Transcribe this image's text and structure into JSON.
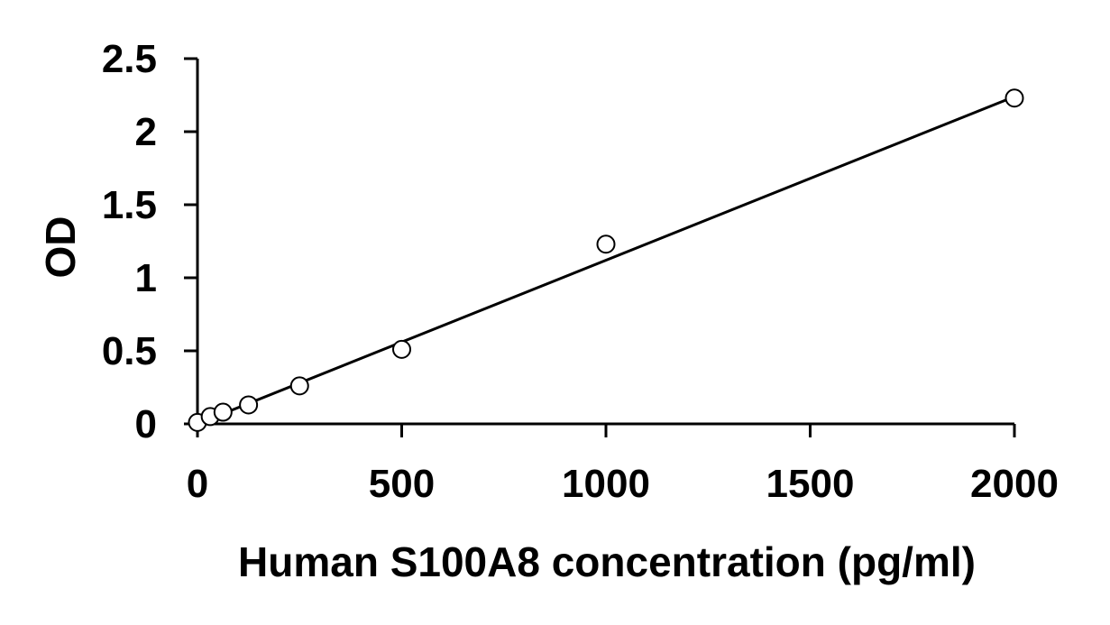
{
  "chart_data": {
    "type": "scatter",
    "title": "",
    "xlabel": "Human S100A8 concentration (pg/ml)",
    "ylabel": "OD",
    "xlim": [
      0,
      2000
    ],
    "ylim": [
      0,
      2.5
    ],
    "xticks": [
      0,
      500,
      1000,
      1500,
      2000
    ],
    "xtick_labels": [
      "0",
      "500",
      "1000",
      "1500",
      "2000"
    ],
    "yticks": [
      0,
      0.5,
      1,
      1.5,
      2,
      2.5
    ],
    "ytick_labels": [
      "0",
      "0.5",
      "1",
      "1.5",
      "2",
      "2.5"
    ],
    "grid": false,
    "legend": "none",
    "series": [
      {
        "marker": "open-circle",
        "x": [
          0,
          31.25,
          62.5,
          125,
          250,
          500,
          1000,
          2000
        ],
        "y": [
          0.01,
          0.05,
          0.08,
          0.13,
          0.26,
          0.51,
          1.23,
          2.23
        ]
      }
    ],
    "trendline": {
      "type": "linear",
      "x": [
        0,
        2000
      ],
      "y": [
        0.0,
        2.24
      ]
    },
    "colors": {
      "axis": "#000000",
      "marker_stroke": "#000000",
      "marker_fill": "#ffffff",
      "line": "#000000"
    }
  }
}
